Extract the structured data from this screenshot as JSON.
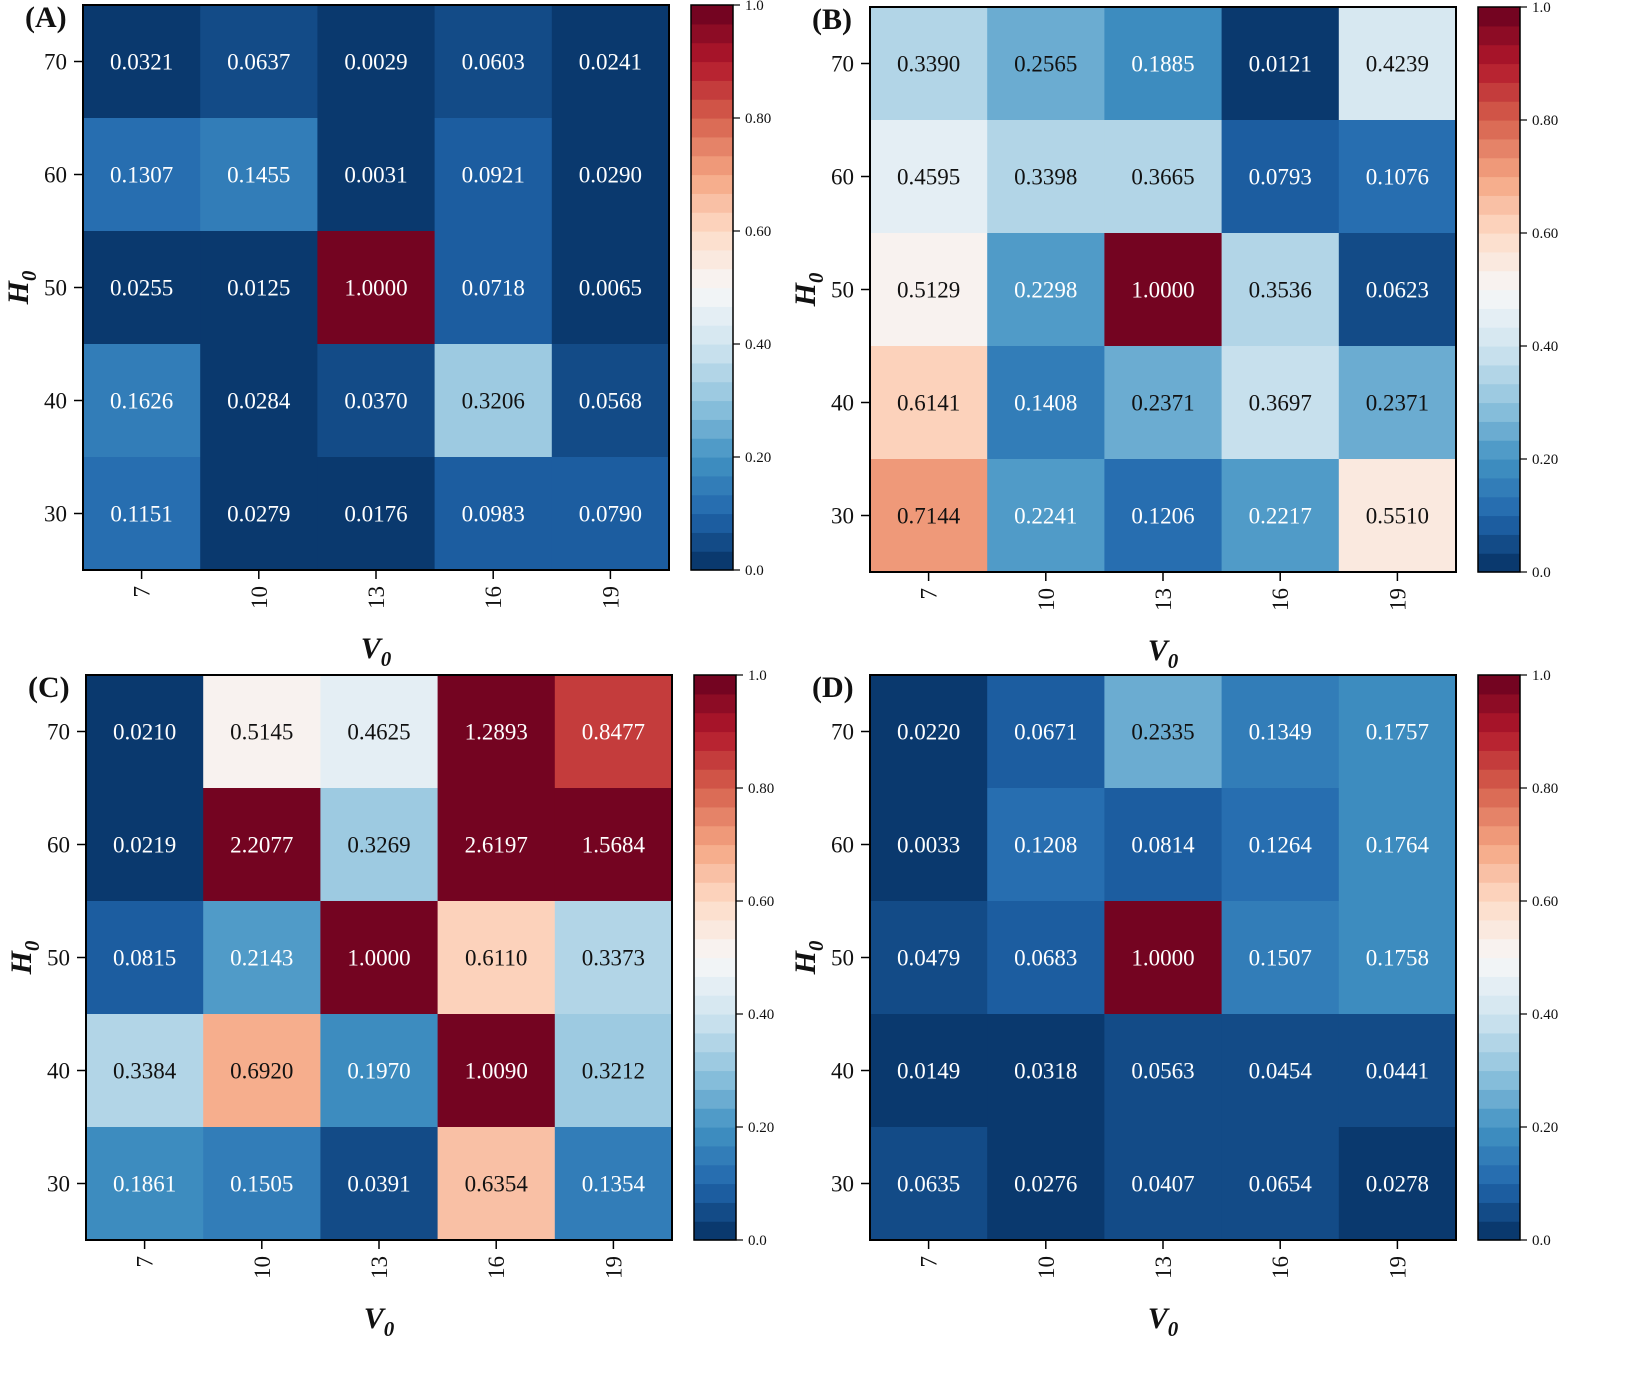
{
  "chart_data": [
    {
      "type": "heatmap",
      "panel_label": "(A)",
      "xlabel_main": "V",
      "xlabel_sub": "0",
      "ylabel_main": "H",
      "ylabel_sub": "0",
      "x_ticks": [
        "7",
        "10",
        "13",
        "16",
        "19"
      ],
      "y_ticks": [
        "70",
        "60",
        "50",
        "40",
        "30"
      ],
      "values": [
        [
          "0.0321",
          "0.0637",
          "0.0029",
          "0.0603",
          "0.0241"
        ],
        [
          "0.1307",
          "0.1455",
          "0.0031",
          "0.0921",
          "0.0290"
        ],
        [
          "0.0255",
          "0.0125",
          "1.0000",
          "0.0718",
          "0.0065"
        ],
        [
          "0.1626",
          "0.0284",
          "0.0370",
          "0.3206",
          "0.0568"
        ],
        [
          "0.1151",
          "0.0279",
          "0.0176",
          "0.0983",
          "0.0790"
        ]
      ],
      "colorbar_range": [
        0,
        1
      ],
      "colorbar_ticks": [
        "0.0",
        "0.20",
        "0.40",
        "0.60",
        "0.80",
        "1.0"
      ]
    },
    {
      "type": "heatmap",
      "panel_label": "(B)",
      "xlabel_main": "V",
      "xlabel_sub": "0",
      "ylabel_main": "H",
      "ylabel_sub": "0",
      "x_ticks": [
        "7",
        "10",
        "13",
        "16",
        "19"
      ],
      "y_ticks": [
        "70",
        "60",
        "50",
        "40",
        "30"
      ],
      "values": [
        [
          "0.3390",
          "0.2565",
          "0.1885",
          "0.0121",
          "0.4239"
        ],
        [
          "0.4595",
          "0.3398",
          "0.3665",
          "0.0793",
          "0.1076"
        ],
        [
          "0.5129",
          "0.2298",
          "1.0000",
          "0.3536",
          "0.0623"
        ],
        [
          "0.6141",
          "0.1408",
          "0.2371",
          "0.3697",
          "0.2371"
        ],
        [
          "0.7144",
          "0.2241",
          "0.1206",
          "0.2217",
          "0.5510"
        ]
      ],
      "colorbar_range": [
        0,
        1
      ],
      "colorbar_ticks": [
        "0.0",
        "0.20",
        "0.40",
        "0.60",
        "0.80",
        "1.0"
      ]
    },
    {
      "type": "heatmap",
      "panel_label": "(C)",
      "xlabel_main": "V",
      "xlabel_sub": "0",
      "ylabel_main": "H",
      "ylabel_sub": "0",
      "x_ticks": [
        "7",
        "10",
        "13",
        "16",
        "19"
      ],
      "y_ticks": [
        "70",
        "60",
        "50",
        "40",
        "30"
      ],
      "values": [
        [
          "0.0210",
          "0.5145",
          "0.4625",
          "1.2893",
          "0.8477"
        ],
        [
          "0.0219",
          "2.2077",
          "0.3269",
          "2.6197",
          "1.5684"
        ],
        [
          "0.0815",
          "0.2143",
          "1.0000",
          "0.6110",
          "0.3373"
        ],
        [
          "0.3384",
          "0.6920",
          "0.1970",
          "1.0090",
          "0.3212"
        ],
        [
          "0.1861",
          "0.1505",
          "0.0391",
          "0.6354",
          "0.1354"
        ]
      ],
      "colorbar_range": [
        0,
        1
      ],
      "colorbar_ticks": [
        "0.0",
        "0.20",
        "0.40",
        "0.60",
        "0.80",
        "1.0"
      ]
    },
    {
      "type": "heatmap",
      "panel_label": "(D)",
      "xlabel_main": "V",
      "xlabel_sub": "0",
      "ylabel_main": "H",
      "ylabel_sub": "0",
      "x_ticks": [
        "7",
        "10",
        "13",
        "16",
        "19"
      ],
      "y_ticks": [
        "70",
        "60",
        "50",
        "40",
        "30"
      ],
      "values": [
        [
          "0.0220",
          "0.0671",
          "0.2335",
          "0.1349",
          "0.1757"
        ],
        [
          "0.0033",
          "0.1208",
          "0.0814",
          "0.1264",
          "0.1764"
        ],
        [
          "0.0479",
          "0.0683",
          "1.0000",
          "0.1507",
          "0.1758"
        ],
        [
          "0.0149",
          "0.0318",
          "0.0563",
          "0.0454",
          "0.0441"
        ],
        [
          "0.0635",
          "0.0276",
          "0.0407",
          "0.0654",
          "0.0278"
        ]
      ],
      "colorbar_range": [
        0,
        1
      ],
      "colorbar_ticks": [
        "0.0",
        "0.20",
        "0.40",
        "0.60",
        "0.80",
        "1.0"
      ]
    }
  ],
  "colormap": {
    "name": "RdBu_r",
    "stops": [
      "#053061",
      "#2166ac",
      "#4393c3",
      "#92c5de",
      "#d1e5f0",
      "#f7f7f7",
      "#fddbc7",
      "#f4a582",
      "#d6604d",
      "#b2182b",
      "#67001f"
    ],
    "bins": 30
  }
}
